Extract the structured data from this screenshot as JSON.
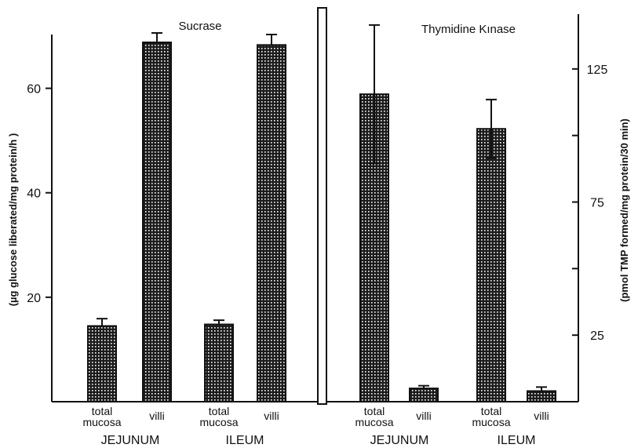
{
  "chart_data": [
    {
      "type": "bar",
      "title": "Sucrase",
      "ylabel": "(µg glucose liberated/mg   protein/h )",
      "ylim": [
        0,
        70
      ],
      "yticks": [
        20,
        40,
        60
      ],
      "ytick_labels": [
        "20",
        "40",
        "60"
      ],
      "categories": [
        {
          "line1": "total",
          "line2": "mucosa",
          "group": "JEJUNUM"
        },
        {
          "line1": "villi",
          "line2": "",
          "group": "JEJUNUM"
        },
        {
          "line1": "total",
          "line2": "mucosa",
          "group": "ILEUM"
        },
        {
          "line1": "villi",
          "line2": "",
          "group": "ILEUM"
        }
      ],
      "groups": [
        "JEJUNUM",
        "ILEUM"
      ],
      "values": [
        14.5,
        68.8,
        14.8,
        68.3
      ],
      "errors": [
        1.4,
        1.8,
        0.8,
        2.0
      ],
      "fill_color": "#2a2a2a"
    },
    {
      "type": "bar",
      "title": "Thymidine Kınase",
      "ylabel": "(pmol TMP formed/mg   protein/30 min)",
      "ylim": [
        0,
        145
      ],
      "yticks": [
        25,
        50,
        75,
        100,
        125
      ],
      "ytick_labels": [
        "25",
        "",
        "75",
        "",
        "125"
      ],
      "categories": [
        {
          "line1": "total",
          "line2": "mucosa",
          "group": "JEJUNUM"
        },
        {
          "line1": "villi",
          "line2": "",
          "group": "JEJUNUM"
        },
        {
          "line1": "total",
          "line2": "mucosa",
          "group": "ILEUM"
        },
        {
          "line1": "villi",
          "line2": "",
          "group": "ILEUM"
        }
      ],
      "groups": [
        "JEJUNUM",
        "ILEUM"
      ],
      "values": [
        115.5,
        5.0,
        102.5,
        4.0
      ],
      "errors": [
        26,
        1,
        11,
        1.5
      ],
      "fill_color": "#2a2a2a"
    }
  ]
}
